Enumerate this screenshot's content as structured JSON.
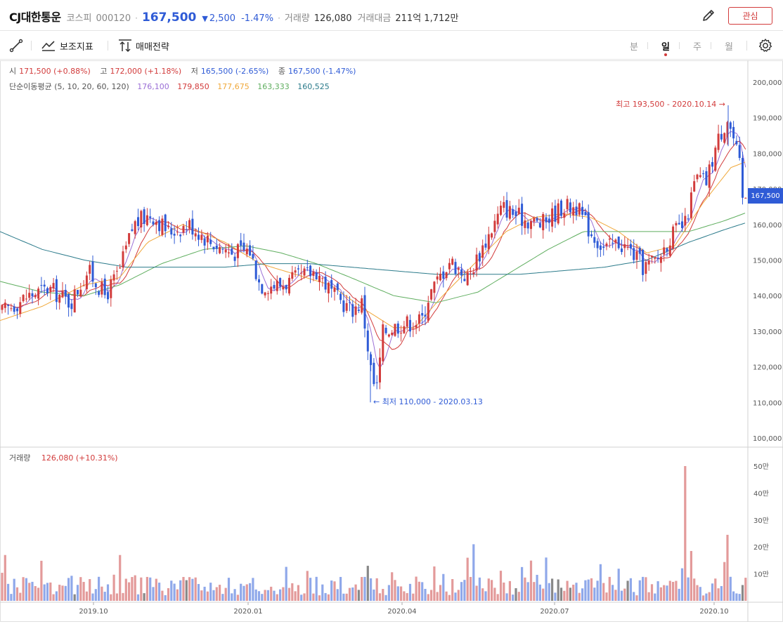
{
  "header": {
    "name": "CJ대한통운",
    "market": "코스피",
    "code": "000120",
    "sep": "·",
    "price": "167,500",
    "change_arrow": "▼",
    "change": "2,500",
    "change_pct": "-1.47%",
    "volume_label": "거래량",
    "volume": "126,080",
    "amount_label": "거래대금",
    "amount": "211억 1,712만",
    "fav_label": "관심",
    "edit_icon": "pencil-icon"
  },
  "toolbar": {
    "draw_icon": "line-draw-icon",
    "indicators_label": "보조지표",
    "indicators_icon": "chart-line-icon",
    "strategy_label": "매매전략",
    "strategy_icon": "up-down-arrows-icon",
    "periods": [
      "분",
      "일",
      "주",
      "월"
    ],
    "active_period": "일",
    "settings_icon": "gear-icon"
  },
  "ohlc": {
    "open_label": "시",
    "open": "171,500 (+0.88%)",
    "high_label": "고",
    "high": "172,000 (+1.18%)",
    "low_label": "저",
    "low": "165,500 (-2.65%)",
    "close_label": "종",
    "close": "167,500 (-1.47%)"
  },
  "ma": {
    "label": "단순이동평균 (5, 10, 20, 60, 120)",
    "values": [
      {
        "v": "176,100",
        "color": "#9b6fd6"
      },
      {
        "v": "179,850",
        "color": "#d23b3b"
      },
      {
        "v": "177,675",
        "color": "#f0a83a"
      },
      {
        "v": "163,333",
        "color": "#5fae5f"
      },
      {
        "v": "160,525",
        "color": "#2a7a8a"
      }
    ]
  },
  "volume_legend": {
    "label": "거래량",
    "value": "126,080 (+10.31%)"
  },
  "annotations": {
    "high": "최고 193,500 - 2020.10.14 →",
    "low": "← 최저 110,000 - 2020.03.13"
  },
  "current_price_tag": "167,500",
  "chart_data": {
    "type": "candlestick",
    "price_axis": {
      "ticks": [
        "200,000",
        "190,000",
        "180,000",
        "170,000",
        "160,000",
        "150,000",
        "140,000",
        "130,000",
        "120,000",
        "110,000",
        "100,000"
      ],
      "range": [
        100000,
        200000
      ]
    },
    "volume_axis": {
      "ticks": [
        "50만",
        "40만",
        "30만",
        "20만",
        "10만"
      ],
      "range": [
        0,
        500000
      ]
    },
    "x_ticks": [
      "2019.10",
      "2020.01",
      "2020.04",
      "2020.07",
      "2020.10"
    ],
    "colors": {
      "up": "#d23b3b",
      "down": "#2f5bd6",
      "up_volume": "#e39a9a",
      "down_volume": "#8fa8ea",
      "flat_volume": "#888888"
    },
    "high": {
      "value": 193500,
      "date": "2020.10.14"
    },
    "low": {
      "value": 110000,
      "date": "2020.03.13"
    },
    "close_path": [
      [
        0,
        135000
      ],
      [
        40,
        140000
      ],
      [
        70,
        142000
      ],
      [
        100,
        138000
      ],
      [
        125,
        147000
      ],
      [
        150,
        140000
      ],
      [
        170,
        147000
      ],
      [
        190,
        160000
      ],
      [
        215,
        163000
      ],
      [
        240,
        158000
      ],
      [
        270,
        160000
      ],
      [
        300,
        155000
      ],
      [
        330,
        152000
      ],
      [
        355,
        153000
      ],
      [
        370,
        143000
      ],
      [
        400,
        143000
      ],
      [
        425,
        145000
      ],
      [
        450,
        147000
      ],
      [
        475,
        140000
      ],
      [
        500,
        136000
      ],
      [
        515,
        138000
      ],
      [
        527,
        120000
      ],
      [
        535,
        112000
      ],
      [
        545,
        130000
      ],
      [
        570,
        132000
      ],
      [
        600,
        133000
      ],
      [
        610,
        140000
      ],
      [
        640,
        150000
      ],
      [
        665,
        145000
      ],
      [
        690,
        155000
      ],
      [
        715,
        165000
      ],
      [
        740,
        162000
      ],
      [
        770,
        160000
      ],
      [
        800,
        165000
      ],
      [
        820,
        165000
      ],
      [
        840,
        158000
      ],
      [
        860,
        153000
      ],
      [
        880,
        155000
      ],
      [
        900,
        152000
      ],
      [
        915,
        148000
      ],
      [
        935,
        150000
      ],
      [
        955,
        157000
      ],
      [
        975,
        160000
      ],
      [
        990,
        173000
      ],
      [
        1005,
        172000
      ],
      [
        1020,
        183000
      ],
      [
        1035,
        190000
      ],
      [
        1045,
        183000
      ],
      [
        1062,
        167500
      ]
    ],
    "ma_paths": [
      {
        "period": 20,
        "color": "#f0a83a",
        "points": [
          [
            0,
            133000
          ],
          [
            60,
            137000
          ],
          [
            120,
            143000
          ],
          [
            170,
            145000
          ],
          [
            210,
            155000
          ],
          [
            260,
            160000
          ],
          [
            320,
            155000
          ],
          [
            370,
            149000
          ],
          [
            420,
            146000
          ],
          [
            470,
            143000
          ],
          [
            520,
            136000
          ],
          [
            560,
            131000
          ],
          [
            590,
            131000
          ],
          [
            630,
            140000
          ],
          [
            680,
            150000
          ],
          [
            720,
            158000
          ],
          [
            760,
            162000
          ],
          [
            800,
            163000
          ],
          [
            840,
            162000
          ],
          [
            880,
            158000
          ],
          [
            920,
            152000
          ],
          [
            960,
            154000
          ],
          [
            1000,
            166000
          ],
          [
            1040,
            176000
          ],
          [
            1062,
            177675
          ]
        ]
      },
      {
        "period": 60,
        "color": "#5fae5f",
        "points": [
          [
            0,
            144000
          ],
          [
            60,
            141000
          ],
          [
            120,
            140000
          ],
          [
            170,
            143000
          ],
          [
            230,
            149000
          ],
          [
            290,
            153000
          ],
          [
            350,
            154000
          ],
          [
            400,
            152000
          ],
          [
            450,
            149000
          ],
          [
            500,
            145000
          ],
          [
            560,
            140000
          ],
          [
            620,
            138000
          ],
          [
            680,
            141000
          ],
          [
            730,
            147000
          ],
          [
            780,
            153000
          ],
          [
            830,
            158000
          ],
          [
            880,
            158000
          ],
          [
            930,
            158000
          ],
          [
            980,
            158000
          ],
          [
            1030,
            161000
          ],
          [
            1062,
            163333
          ]
        ]
      },
      {
        "period": 120,
        "color": "#2a7a8a",
        "points": [
          [
            0,
            158000
          ],
          [
            60,
            153000
          ],
          [
            120,
            150000
          ],
          [
            180,
            148000
          ],
          [
            250,
            148000
          ],
          [
            320,
            148000
          ],
          [
            380,
            149000
          ],
          [
            440,
            149000
          ],
          [
            500,
            148000
          ],
          [
            560,
            147000
          ],
          [
            620,
            146000
          ],
          [
            680,
            146000
          ],
          [
            740,
            146000
          ],
          [
            800,
            147000
          ],
          [
            860,
            148000
          ],
          [
            920,
            150000
          ],
          [
            980,
            155000
          ],
          [
            1030,
            158500
          ],
          [
            1062,
            160525
          ]
        ]
      }
    ],
    "volume_spikes": [
      [
        8,
        170000
      ],
      [
        170,
        170000
      ],
      [
        525,
        130000
      ],
      [
        667,
        160000
      ],
      [
        675,
        210000
      ],
      [
        977,
        500000
      ],
      [
        985,
        185000
      ],
      [
        1036,
        245000
      ]
    ]
  }
}
